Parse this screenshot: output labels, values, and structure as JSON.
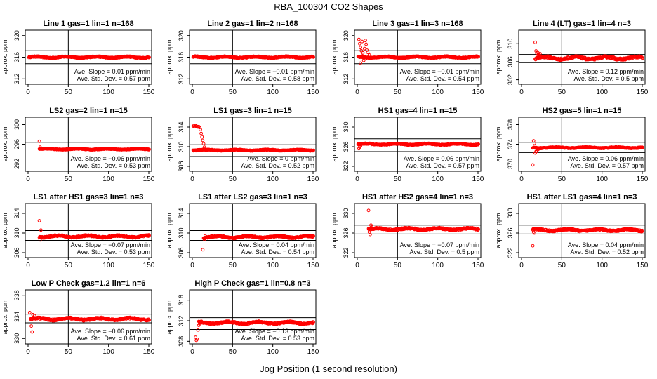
{
  "figure": {
    "title": "RBA_100304  CO2 Shapes",
    "xlabel": "Jog Position (1 second resolution)"
  },
  "colors": {
    "points": "#ff0000",
    "axes": "#000000"
  },
  "chart_data": [
    {
      "type": "scatter",
      "title": "Line 1 gas=1 lin=1 n=168",
      "ylabel": "approx. ppm",
      "xlim": [
        0,
        150
      ],
      "ylim": [
        311,
        321
      ],
      "yticks": [
        312,
        316,
        320
      ],
      "xticks": [
        0,
        50,
        100,
        150
      ],
      "hlines": [
        317.2,
        314.8
      ],
      "vline": 50,
      "baseline": 316,
      "x_start": 1,
      "noise": 0.2,
      "early": [],
      "slope_text": "Ave. Slope =  0.01  ppm/min",
      "sd_text": "Ave. Std. Dev. =  0.57  ppm"
    },
    {
      "type": "scatter",
      "title": "Line 2 gas=1 lin=2 n=168",
      "ylabel": "approx. ppm",
      "xlim": [
        0,
        150
      ],
      "ylim": [
        311,
        321
      ],
      "yticks": [
        312,
        316,
        320
      ],
      "xticks": [
        0,
        50,
        100,
        150
      ],
      "hlines": [
        317.2,
        314.8
      ],
      "vline": 50,
      "baseline": 316,
      "x_start": 1,
      "noise": 0.2,
      "early": [],
      "slope_text": "Ave. Slope =  −0.01  ppm/min",
      "sd_text": "Ave. Std. Dev. =  0.58  ppm"
    },
    {
      "type": "scatter",
      "title": "Line 3 gas=1 lin=3 n=168",
      "ylabel": "approx. ppm",
      "xlim": [
        0,
        150
      ],
      "ylim": [
        311,
        321
      ],
      "yticks": [
        312,
        316,
        320
      ],
      "xticks": [
        0,
        50,
        100,
        150
      ],
      "hlines": [
        317.2,
        314.8
      ],
      "vline": 50,
      "baseline": 316,
      "x_start": 1,
      "noise": 0.2,
      "early": [
        [
          2,
          319.3
        ],
        [
          3,
          318.5
        ],
        [
          4,
          317.8
        ],
        [
          5,
          317.2
        ],
        [
          6,
          318.9
        ],
        [
          7,
          316.8
        ],
        [
          8,
          315.4
        ],
        [
          9,
          317.6
        ],
        [
          10,
          319.1
        ],
        [
          11,
          318.4
        ],
        [
          12,
          317.3
        ],
        [
          13,
          316.9
        ],
        [
          4,
          314.9
        ],
        [
          6,
          316.2
        ],
        [
          15,
          316.4
        ]
      ],
      "slope_text": "Ave. Slope =  −0.01  ppm/min",
      "sd_text": "Ave. Std. Dev. =  0.54  ppm"
    },
    {
      "type": "scatter",
      "title": "Line 4 (LT) gas=1 lin=4 n=3",
      "ylabel": "approx. ppm",
      "xlim": [
        0,
        150
      ],
      "ylim": [
        301,
        313
      ],
      "yticks": [
        302,
        306,
        310
      ],
      "xticks": [
        0,
        50,
        100,
        150
      ],
      "hlines": [
        307.6,
        305.8
      ],
      "vline": 50,
      "baseline": 306.8,
      "x_start": 17,
      "noise": 0.45,
      "early": [
        [
          17,
          310.3
        ],
        [
          18,
          308.4
        ],
        [
          19,
          307.9
        ],
        [
          20,
          308.1
        ],
        [
          21,
          307.6
        ],
        [
          22,
          307.4
        ],
        [
          23,
          307.8
        ],
        [
          24,
          307.2
        ]
      ],
      "slope_text": "Ave. Slope =  0.12  ppm/min",
      "sd_text": "Ave. Std. Dev. =  0.5  ppm"
    },
    {
      "type": "scatter",
      "title": "LS2 gas=2 lin=1 n=15",
      "ylabel": "approx. ppm",
      "xlim": [
        0,
        150
      ],
      "ylim": [
        290.5,
        301.5
      ],
      "yticks": [
        292,
        296,
        300
      ],
      "xticks": [
        0,
        50,
        100,
        150
      ],
      "hlines": [
        296.4,
        294
      ],
      "vline": 50,
      "baseline": 295,
      "x_start": 14,
      "noise": 0.15,
      "early": [
        [
          14,
          296.6
        ],
        [
          15,
          295.4
        ],
        [
          16,
          295.0
        ]
      ],
      "slope_text": "Ave. Slope =  −0.06  ppm/min",
      "sd_text": "Ave. Std. Dev. =  0.53  ppm"
    },
    {
      "type": "scatter",
      "title": "LS1 gas=3 lin=1 n=15",
      "ylabel": "approx. ppm",
      "xlim": [
        0,
        150
      ],
      "ylim": [
        305,
        316
      ],
      "yticks": [
        306,
        310,
        314
      ],
      "xticks": [
        0,
        50,
        100,
        150
      ],
      "hlines": [
        310.4,
        308
      ],
      "vline": 50,
      "baseline": 309.3,
      "x_start": 1,
      "noise": 0.15,
      "early": [
        [
          1,
          314.2
        ],
        [
          2,
          314.2
        ],
        [
          3,
          314.1
        ],
        [
          4,
          314.3
        ],
        [
          5,
          314.2
        ],
        [
          6,
          314.1
        ],
        [
          7,
          314.0
        ],
        [
          8,
          314.1
        ],
        [
          9,
          313.9
        ],
        [
          10,
          313.5
        ],
        [
          11,
          312.7
        ],
        [
          12,
          312.0
        ],
        [
          13,
          311.3
        ],
        [
          14,
          310.6
        ],
        [
          15,
          309.9
        ],
        [
          16,
          309.6
        ],
        [
          17,
          309.4
        ]
      ],
      "slope_text": "Ave. Slope =  0  ppm/min",
      "sd_text": "Ave. Std. Dev. =  0.52  ppm"
    },
    {
      "type": "scatter",
      "title": "HS1 gas=4 lin=1 n=15",
      "ylabel": "approx. ppm",
      "xlim": [
        0,
        150
      ],
      "ylim": [
        321,
        332
      ],
      "yticks": [
        322,
        326,
        330
      ],
      "xticks": [
        0,
        50,
        100,
        150
      ],
      "hlines": [
        327.6,
        325
      ],
      "vline": 50,
      "baseline": 326.5,
      "x_start": 1,
      "noise": 0.2,
      "early": [
        [
          2,
          325.6
        ],
        [
          3,
          325.9
        ],
        [
          4,
          326.1
        ]
      ],
      "slope_text": "Ave. Slope =  0.06  ppm/min",
      "sd_text": "Ave. Std. Dev. =  0.57  ppm"
    },
    {
      "type": "scatter",
      "title": "HS2 gas=5 lin=1 n=15",
      "ylabel": "approx. ppm",
      "xlim": [
        0,
        150
      ],
      "ylim": [
        368.5,
        379.5
      ],
      "yticks": [
        370,
        374,
        378
      ],
      "xticks": [
        0,
        50,
        100,
        150
      ],
      "hlines": [
        374.4,
        372.3
      ],
      "vline": 50,
      "baseline": 373.3,
      "x_start": 14,
      "noise": 0.15,
      "early": [
        [
          14,
          369.8
        ],
        [
          15,
          374.7
        ],
        [
          16,
          374.2
        ],
        [
          17,
          372.2
        ],
        [
          18,
          372.5
        ],
        [
          19,
          372.6
        ],
        [
          20,
          372.9
        ],
        [
          21,
          373.0
        ]
      ],
      "slope_text": "Ave. Slope =  0.06  ppm/min",
      "sd_text": "Ave. Std. Dev. =  0.57  ppm"
    },
    {
      "type": "scatter",
      "title": "LS1 after HS1 gas=3 lin=1 n=3",
      "ylabel": "approx. ppm",
      "xlim": [
        0,
        150
      ],
      "ylim": [
        305,
        316
      ],
      "yticks": [
        306,
        310,
        314
      ],
      "xticks": [
        0,
        50,
        100,
        150
      ],
      "hlines": [
        310.5,
        308.5
      ],
      "vline": 50,
      "baseline": 309.3,
      "x_start": 14,
      "noise": 0.3,
      "early": [
        [
          14,
          312.5
        ],
        [
          15,
          308.6
        ],
        [
          16,
          310.6
        ],
        [
          17,
          309.1
        ]
      ],
      "slope_text": "Ave. Slope =  −0.07  ppm/min",
      "sd_text": "Ave. Std. Dev. =  0.53  ppm"
    },
    {
      "type": "scatter",
      "title": "LS1 after LS2 gas=3 lin=1 n=3",
      "ylabel": "approx. ppm",
      "xlim": [
        0,
        150
      ],
      "ylim": [
        305,
        316
      ],
      "yticks": [
        306,
        310,
        314
      ],
      "xticks": [
        0,
        50,
        100,
        150
      ],
      "hlines": [
        310.5,
        308.5
      ],
      "vline": 50,
      "baseline": 309.2,
      "x_start": 14,
      "noise": 0.3,
      "early": [
        [
          13,
          306.6
        ],
        [
          15,
          308.7
        ],
        [
          16,
          309.4
        ]
      ],
      "slope_text": "Ave. Slope =  0.04  ppm/min",
      "sd_text": "Ave. Std. Dev. =  0.54  ppm"
    },
    {
      "type": "scatter",
      "title": "HS1 after HS2 gas=4 lin=1 n=3",
      "ylabel": "approx. ppm",
      "xlim": [
        0,
        150
      ],
      "ylim": [
        321,
        332
      ],
      "yticks": [
        322,
        326,
        330
      ],
      "xticks": [
        0,
        50,
        100,
        150
      ],
      "hlines": [
        327.6,
        325.8
      ],
      "vline": 50,
      "baseline": 326.8,
      "x_start": 14,
      "noise": 0.3,
      "early": [
        [
          14,
          330.6
        ],
        [
          15,
          326.2
        ],
        [
          16,
          325.7
        ],
        [
          17,
          327.6
        ],
        [
          18,
          327.2
        ]
      ],
      "slope_text": "Ave. Slope =  −0.07  ppm/min",
      "sd_text": "Ave. Std. Dev. =  0.5  ppm"
    },
    {
      "type": "scatter",
      "title": "HS1 after LS1 gas=4 lin=1 n=3",
      "ylabel": "approx. ppm",
      "xlim": [
        0,
        150
      ],
      "ylim": [
        321,
        332
      ],
      "yticks": [
        322,
        326,
        330
      ],
      "xticks": [
        0,
        50,
        100,
        150
      ],
      "hlines": [
        327.6,
        325.8
      ],
      "vline": 50,
      "baseline": 326.6,
      "x_start": 14,
      "noise": 0.3,
      "early": [
        [
          14,
          323.4
        ],
        [
          15,
          326.2
        ],
        [
          16,
          326.0
        ]
      ],
      "slope_text": "Ave. Slope =  0.04  ppm/min",
      "sd_text": "Ave. Std. Dev. =  0.52  ppm"
    },
    {
      "type": "scatter",
      "title": "Low P Check gas=1.2 lin=1 n=6",
      "ylabel": "approx. ppm",
      "xlim": [
        0,
        150
      ],
      "ylim": [
        329,
        339
      ],
      "yticks": [
        330,
        334,
        338
      ],
      "xticks": [
        0,
        50,
        100,
        150
      ],
      "hlines": [
        334.5,
        332.9
      ],
      "vline": 50,
      "baseline": 333.6,
      "x_start": 3,
      "noise": 0.3,
      "early": [
        [
          2,
          334.8
        ],
        [
          3,
          333.6
        ],
        [
          4,
          332.3
        ],
        [
          5,
          331.2
        ],
        [
          6,
          334.4
        ],
        [
          7,
          333.9
        ],
        [
          8,
          334.2
        ]
      ],
      "slope_text": "Ave. Slope =  −0.06  ppm/min",
      "sd_text": "Ave. Std. Dev. =  0.61  ppm"
    },
    {
      "type": "scatter",
      "title": "High P Check gas=1 lin=0.8 n=3",
      "ylabel": "approx. ppm",
      "xlim": [
        0,
        150
      ],
      "ylim": [
        307.5,
        318
      ],
      "yticks": [
        308,
        312,
        316
      ],
      "xticks": [
        0,
        50,
        100,
        150
      ],
      "hlines": [
        312.6,
        310.3
      ],
      "vline": 50,
      "baseline": 311.6,
      "x_start": 8,
      "noise": 0.3,
      "early": [
        [
          4,
          308.8
        ],
        [
          5,
          308.2
        ],
        [
          6,
          308.4
        ],
        [
          7,
          310.2
        ],
        [
          8,
          311.1
        ],
        [
          9,
          311.4
        ]
      ],
      "slope_text": "Ave. Slope =  −0.13  ppm/min",
      "sd_text": "Ave. Std. Dev. =  0.53  ppm"
    }
  ]
}
